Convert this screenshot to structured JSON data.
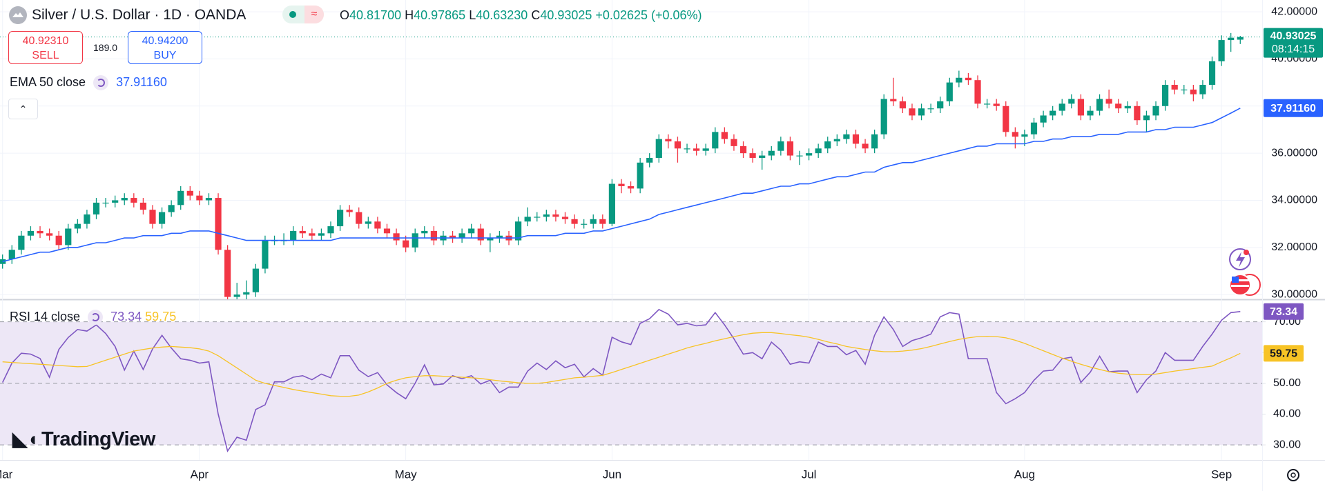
{
  "header": {
    "title": "Silver / U.S. Dollar · 1D · OANDA",
    "ohlc": [
      "O",
      "H",
      "L",
      "C"
    ],
    "change": "+0.02625 (+0.06%)"
  },
  "trade": {
    "sell_price": "40.92310",
    "sell": "SELL",
    "spread": "189.0",
    "buy_price": "40.94200",
    "buy": "BUY"
  },
  "logo": "TradingView",
  "chart_data": [
    {
      "type": "candlestick",
      "up_color": "#089981",
      "down_color": "#f23645",
      "categories": [
        "Mar",
        null,
        null,
        null,
        null,
        null,
        null,
        null,
        null,
        null,
        null,
        null,
        null,
        null,
        null,
        null,
        null,
        null,
        null,
        null,
        null,
        "Apr",
        null,
        null,
        null,
        null,
        null,
        null,
        null,
        null,
        null,
        null,
        null,
        null,
        null,
        null,
        null,
        null,
        null,
        null,
        null,
        null,
        null,
        "May",
        null,
        null,
        null,
        null,
        null,
        null,
        null,
        null,
        null,
        null,
        null,
        null,
        null,
        null,
        null,
        null,
        null,
        null,
        null,
        null,
        null,
        "Jun",
        null,
        null,
        null,
        null,
        null,
        null,
        null,
        null,
        null,
        null,
        null,
        null,
        null,
        null,
        null,
        null,
        null,
        null,
        null,
        null,
        "Jul",
        null,
        null,
        null,
        null,
        null,
        null,
        null,
        null,
        null,
        null,
        null,
        null,
        null,
        null,
        null,
        null,
        null,
        null,
        null,
        null,
        null,
        null,
        "Aug",
        null,
        null,
        null,
        null,
        null,
        null,
        null,
        null,
        null,
        null,
        null,
        null,
        null,
        null,
        null,
        null,
        null,
        null,
        null,
        null,
        "Sep",
        null,
        null
      ],
      "open": [
        31.3,
        31.5,
        31.9,
        32.5,
        32.7,
        32.6,
        32.5,
        32.1,
        32.8,
        33.0,
        33.4,
        33.9,
        33.9,
        34.0,
        34.1,
        33.9,
        33.6,
        33.0,
        33.5,
        33.8,
        34.4,
        34.2,
        34.0,
        34.1,
        31.9,
        29.9,
        30.0,
        30.1,
        31.1,
        32.3,
        32.3,
        32.3,
        32.7,
        32.6,
        32.5,
        32.6,
        32.9,
        33.6,
        33.5,
        33.0,
        33.1,
        32.8,
        32.6,
        32.3,
        32.0,
        32.6,
        32.7,
        32.3,
        32.5,
        32.4,
        32.6,
        32.8,
        32.3,
        32.4,
        32.5,
        32.3,
        33.1,
        33.3,
        33.3,
        33.4,
        33.3,
        33.2,
        33.0,
        33.0,
        33.2,
        33.0,
        34.7,
        34.6,
        34.5,
        35.6,
        35.8,
        36.6,
        36.5,
        36.2,
        36.2,
        36.1,
        36.2,
        36.9,
        36.6,
        36.3,
        36.0,
        35.8,
        35.9,
        36.1,
        36.5,
        35.9,
        35.9,
        36.0,
        36.2,
        36.5,
        36.6,
        36.8,
        36.4,
        36.2,
        36.8,
        38.3,
        38.2,
        37.9,
        37.6,
        37.9,
        37.9,
        38.2,
        39.0,
        39.2,
        39.1,
        38.1,
        38.1,
        38.0,
        36.9,
        36.7,
        36.8,
        37.3,
        37.6,
        37.8,
        38.1,
        38.3,
        37.6,
        37.8,
        38.3,
        38.1,
        37.9,
        38.0,
        37.4,
        37.6,
        38.0,
        38.9,
        38.7,
        38.7,
        38.5,
        38.9,
        39.9,
        40.8,
        40.817
      ],
      "high": [
        31.7,
        32.1,
        32.7,
        32.9,
        32.9,
        32.8,
        32.7,
        33.0,
        33.2,
        33.6,
        34.1,
        34.1,
        34.2,
        34.3,
        34.3,
        34.1,
        33.8,
        33.7,
        34.0,
        34.6,
        34.6,
        34.4,
        34.3,
        34.3,
        32.1,
        30.5,
        30.6,
        31.3,
        32.5,
        32.5,
        32.6,
        32.9,
        32.9,
        32.8,
        32.8,
        33.1,
        33.8,
        33.8,
        33.7,
        33.3,
        33.3,
        33.0,
        32.8,
        32.5,
        32.8,
        32.9,
        32.9,
        32.7,
        32.7,
        32.8,
        33.0,
        33.0,
        32.6,
        32.7,
        32.7,
        33.3,
        33.7,
        33.5,
        33.6,
        33.6,
        33.5,
        33.4,
        33.2,
        33.4,
        33.4,
        34.9,
        34.9,
        34.8,
        35.8,
        36.0,
        36.8,
        36.8,
        36.7,
        36.4,
        36.4,
        36.4,
        37.1,
        37.1,
        36.8,
        36.5,
        36.2,
        36.1,
        36.3,
        36.7,
        36.7,
        36.1,
        36.2,
        36.4,
        36.7,
        36.8,
        37.0,
        37.0,
        36.6,
        37.0,
        38.5,
        39.2,
        38.4,
        38.1,
        38.1,
        38.1,
        38.4,
        39.2,
        39.5,
        39.4,
        39.3,
        38.3,
        38.3,
        38.2,
        37.1,
        37.0,
        37.5,
        37.8,
        38.0,
        38.3,
        38.5,
        38.5,
        38.0,
        38.5,
        38.7,
        38.3,
        38.2,
        38.2,
        37.8,
        38.2,
        39.1,
        39.1,
        38.9,
        38.9,
        39.1,
        40.1,
        41.0,
        41.1,
        40.97865
      ],
      "low": [
        31.1,
        31.3,
        31.7,
        32.3,
        32.4,
        32.3,
        31.9,
        31.9,
        32.6,
        32.8,
        33.2,
        33.7,
        33.7,
        33.8,
        33.7,
        33.4,
        32.8,
        32.8,
        33.3,
        33.6,
        34.0,
        33.8,
        33.8,
        31.7,
        29.5,
        29.6,
        29.8,
        29.9,
        30.9,
        32.1,
        32.1,
        32.1,
        32.4,
        32.3,
        32.3,
        32.4,
        32.7,
        33.3,
        32.8,
        32.8,
        32.6,
        32.4,
        32.1,
        31.8,
        31.8,
        32.4,
        32.1,
        32.1,
        32.2,
        32.2,
        32.4,
        32.1,
        31.8,
        32.2,
        32.1,
        32.1,
        32.9,
        33.1,
        33.1,
        33.1,
        33.0,
        32.8,
        32.8,
        32.8,
        32.8,
        32.9,
        34.3,
        34.3,
        34.3,
        35.4,
        35.6,
        36.2,
        35.6,
        36.0,
        35.9,
        35.9,
        36.0,
        36.4,
        36.1,
        35.8,
        35.6,
        35.3,
        35.7,
        35.9,
        35.7,
        35.5,
        35.7,
        35.8,
        36.0,
        36.3,
        36.4,
        36.2,
        36.0,
        36.0,
        36.6,
        38.0,
        37.7,
        37.4,
        37.4,
        37.7,
        37.7,
        38.0,
        38.8,
        38.9,
        37.9,
        37.9,
        37.8,
        36.7,
        36.2,
        36.3,
        36.6,
        37.1,
        37.4,
        37.6,
        37.9,
        37.4,
        37.4,
        37.6,
        37.9,
        37.7,
        37.7,
        37.2,
        36.9,
        37.4,
        37.8,
        38.5,
        38.5,
        38.2,
        38.3,
        38.7,
        39.7,
        40.3,
        40.6323
      ],
      "close": [
        31.5,
        31.9,
        32.5,
        32.7,
        32.6,
        32.5,
        32.1,
        32.8,
        33.0,
        33.4,
        33.9,
        33.9,
        34.0,
        34.1,
        33.9,
        33.6,
        33.0,
        33.5,
        33.8,
        34.4,
        34.2,
        34.0,
        34.1,
        31.9,
        29.9,
        30.0,
        30.1,
        31.1,
        32.3,
        32.3,
        32.3,
        32.7,
        32.6,
        32.5,
        32.6,
        32.9,
        33.6,
        33.5,
        33.0,
        33.1,
        32.8,
        32.6,
        32.3,
        32.0,
        32.6,
        32.7,
        32.3,
        32.5,
        32.4,
        32.6,
        32.8,
        32.3,
        32.4,
        32.5,
        32.3,
        33.1,
        33.3,
        33.3,
        33.4,
        33.3,
        33.2,
        33.0,
        33.0,
        33.2,
        33.0,
        34.7,
        34.6,
        34.5,
        35.6,
        35.8,
        36.6,
        36.5,
        36.2,
        36.2,
        36.1,
        36.2,
        36.9,
        36.6,
        36.3,
        36.0,
        35.8,
        35.9,
        36.1,
        36.5,
        35.9,
        35.9,
        36.0,
        36.2,
        36.5,
        36.6,
        36.8,
        36.4,
        36.2,
        36.8,
        38.3,
        38.2,
        37.9,
        37.6,
        37.9,
        37.9,
        38.2,
        39.0,
        39.2,
        39.1,
        38.1,
        38.1,
        38.0,
        36.9,
        36.7,
        36.8,
        37.3,
        37.6,
        37.8,
        38.1,
        38.3,
        37.6,
        37.8,
        38.3,
        38.1,
        37.9,
        38.0,
        37.4,
        37.6,
        38.0,
        38.9,
        38.7,
        38.7,
        38.5,
        38.9,
        39.9,
        40.8,
        40.9,
        40.93025
      ],
      "last_labels": {
        "open": "40.81700",
        "high": "40.97865",
        "low": "40.63230"
      },
      "countdown": "08:14:15",
      "overlays": [
        {
          "name": "EMA 50 close",
          "color": "#2962ff",
          "last_value_label": "37.91160",
          "values": [
            31.4,
            31.5,
            31.6,
            31.7,
            31.8,
            31.8,
            31.9,
            32.0,
            32.0,
            32.1,
            32.2,
            32.2,
            32.3,
            32.4,
            32.4,
            32.5,
            32.5,
            32.5,
            32.6,
            32.6,
            32.7,
            32.7,
            32.7,
            32.6,
            32.5,
            32.4,
            32.3,
            32.3,
            32.3,
            32.3,
            32.3,
            32.3,
            32.3,
            32.3,
            32.3,
            32.3,
            32.4,
            32.4,
            32.4,
            32.4,
            32.4,
            32.4,
            32.4,
            32.4,
            32.4,
            32.4,
            32.4,
            32.4,
            32.4,
            32.4,
            32.4,
            32.4,
            32.4,
            32.4,
            32.4,
            32.4,
            32.5,
            32.5,
            32.5,
            32.5,
            32.6,
            32.6,
            32.6,
            32.7,
            32.7,
            32.8,
            32.9,
            33.0,
            33.1,
            33.2,
            33.4,
            33.5,
            33.6,
            33.7,
            33.8,
            33.9,
            34.0,
            34.1,
            34.2,
            34.3,
            34.3,
            34.4,
            34.5,
            34.6,
            34.6,
            34.7,
            34.7,
            34.8,
            34.9,
            35.0,
            35.0,
            35.1,
            35.2,
            35.2,
            35.4,
            35.5,
            35.6,
            35.6,
            35.7,
            35.8,
            35.9,
            36.0,
            36.1,
            36.2,
            36.3,
            36.3,
            36.4,
            36.4,
            36.4,
            36.4,
            36.5,
            36.5,
            36.6,
            36.6,
            36.7,
            36.7,
            36.7,
            36.8,
            36.8,
            36.8,
            36.9,
            36.9,
            36.9,
            37.0,
            37.0,
            37.1,
            37.1,
            37.1,
            37.2,
            37.3,
            37.5,
            37.7,
            37.9116
          ]
        }
      ],
      "ylim": [
        29.8,
        42.5
      ],
      "yticks": [
        {
          "value": 30,
          "label": "30.00000"
        },
        {
          "value": 32,
          "label": "32.00000"
        },
        {
          "value": 34,
          "label": "34.00000"
        },
        {
          "value": 36,
          "label": "36.00000"
        },
        {
          "value": 38,
          "label": "38.00000"
        },
        {
          "value": 40,
          "label": "40.00000"
        },
        {
          "value": 42,
          "label": "42.00000"
        }
      ],
      "grid": true
    },
    {
      "type": "line",
      "title": "RSI 14 close",
      "series": [
        {
          "name": "RSI 14 close",
          "color": "#7e57c2",
          "values": [
            50.3,
            56.6,
            59.8,
            59.5,
            58.1,
            52.0,
            61.0,
            64.9,
            67.5,
            67.0,
            69.0,
            66.2,
            62.0,
            54.3,
            60.5,
            54.5,
            61.2,
            65.6,
            61.5,
            58.0,
            57.5,
            56.6,
            57.0,
            40.0,
            28.0,
            32.5,
            31.5,
            41.5,
            43.0,
            50.5,
            50.5,
            52.0,
            52.5,
            51.2,
            53.0,
            51.8,
            59.0,
            59.0,
            54.3,
            52.2,
            53.5,
            49.5,
            47.0,
            45.0,
            50.0,
            56.0,
            49.5,
            49.8,
            52.5,
            51.5,
            52.5,
            49.8,
            51.0,
            47.0,
            48.8,
            48.8,
            54.0,
            56.6,
            54.5,
            57.3,
            55.1,
            56.2,
            52.1,
            54.8,
            52.6,
            65.0,
            63.5,
            62.6,
            69.5,
            71.0,
            74.0,
            72.5,
            69.0,
            69.5,
            68.7,
            69.0,
            73.0,
            69.0,
            64.5,
            59.5,
            60.0,
            58.0,
            63.4,
            60.8,
            56.2,
            57.0,
            56.6,
            63.4,
            62.0,
            62.0,
            59.3,
            60.7,
            56.2,
            65.6,
            71.6,
            67.5,
            62.0,
            63.9,
            64.8,
            66.0,
            71.6,
            73.0,
            72.5,
            58.0,
            58.0,
            58.0,
            47.0,
            43.4,
            45.0,
            47.0,
            51.0,
            54.0,
            54.3,
            58.0,
            58.5,
            50.3,
            53.6,
            58.8,
            53.8,
            54.0,
            54.0,
            47.0,
            51.2,
            54.0,
            60.0,
            57.5,
            57.5,
            57.5,
            62.0,
            66.0,
            70.5,
            73.0,
            73.34
          ]
        },
        {
          "color": "#f7c325",
          "values": [
            57.0,
            56.8,
            56.6,
            56.4,
            56.2,
            56.0,
            55.8,
            55.6,
            55.4,
            55.5,
            56.5,
            57.5,
            58.5,
            59.5,
            60.5,
            61.0,
            61.5,
            61.8,
            62.0,
            61.8,
            61.6,
            61.2,
            60.5,
            59.0,
            57.0,
            55.0,
            53.0,
            51.0,
            50.0,
            49.3,
            48.7,
            48.0,
            47.5,
            47.0,
            46.5,
            46.0,
            45.8,
            45.8,
            46.2,
            47.2,
            48.5,
            50.0,
            51.0,
            51.8,
            52.2,
            52.5,
            52.5,
            52.3,
            52.2,
            52.0,
            51.8,
            51.6,
            51.2,
            50.8,
            50.5,
            50.2,
            50.0,
            50.0,
            50.3,
            50.8,
            51.3,
            51.8,
            52.0,
            52.3,
            52.6,
            53.5,
            54.5,
            55.5,
            56.5,
            57.5,
            58.5,
            59.5,
            60.5,
            61.5,
            62.3,
            63.0,
            63.8,
            64.5,
            65.2,
            65.8,
            66.3,
            66.5,
            66.5,
            66.2,
            65.8,
            65.5,
            65.0,
            64.3,
            63.5,
            62.8,
            62.0,
            61.5,
            61.0,
            60.6,
            60.3,
            60.3,
            60.5,
            60.8,
            61.3,
            62.0,
            62.8,
            63.6,
            64.3,
            64.8,
            65.2,
            65.3,
            65.2,
            64.8,
            64.0,
            63.0,
            61.8,
            60.6,
            59.4,
            58.2,
            57.2,
            56.2,
            55.3,
            54.5,
            53.8,
            53.3,
            53.0,
            52.8,
            52.8,
            53.0,
            53.5,
            54.0,
            54.4,
            54.8,
            55.2,
            55.6,
            57.0,
            58.3,
            59.75
          ]
        }
      ],
      "ylim": [
        25.1,
        77.1
      ],
      "yticks": [
        {
          "value": 30,
          "label": "30.00"
        },
        {
          "value": 40,
          "label": "40.00"
        },
        {
          "value": 50,
          "label": "50.00"
        },
        {
          "value": 60,
          "label": "60.00"
        },
        {
          "value": 70,
          "label": "70.00"
        }
      ],
      "band": [
        30,
        70
      ],
      "band_color": "#ede7f6",
      "levels": [
        30,
        50,
        70
      ]
    }
  ]
}
